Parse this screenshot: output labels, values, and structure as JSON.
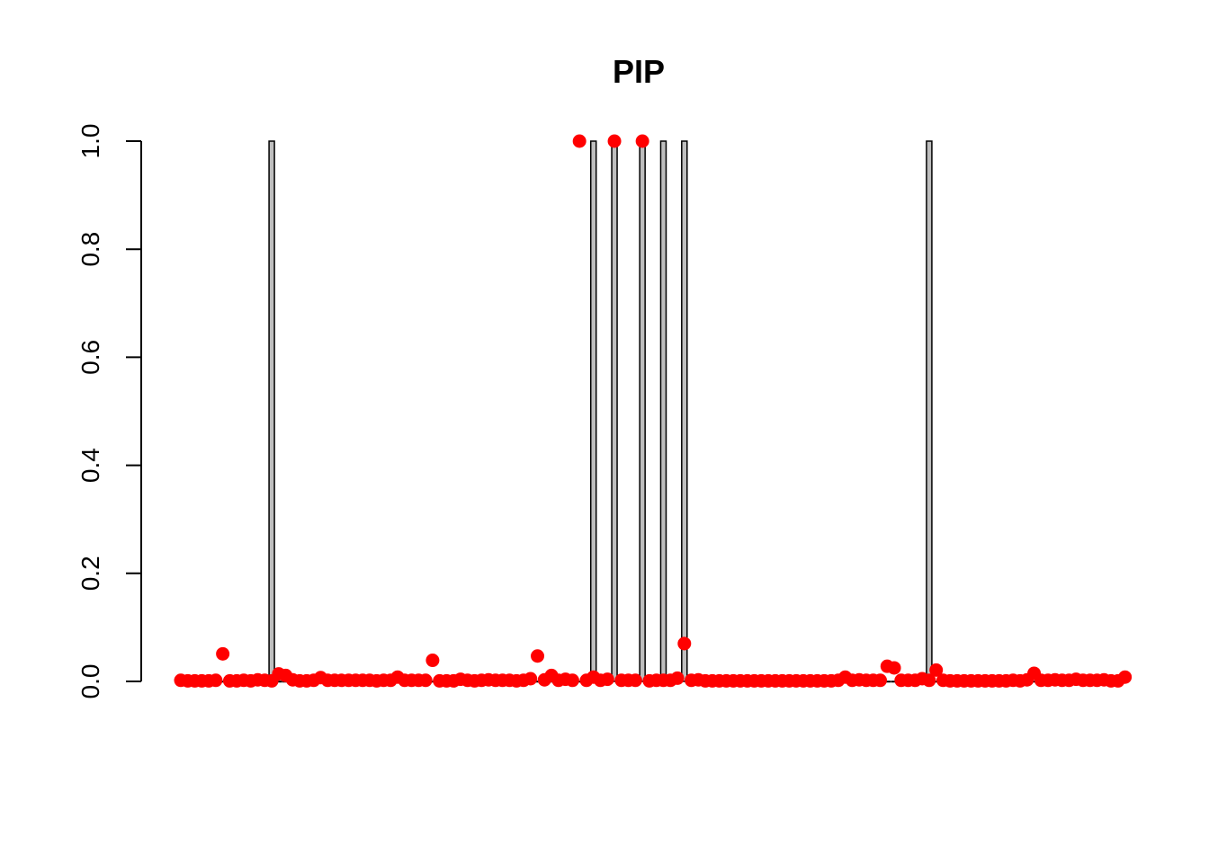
{
  "chart_data": {
    "type": "bar",
    "title": "PIP",
    "xlabel": "",
    "ylabel": "",
    "ylim": [
      0,
      1
    ],
    "yticks": [
      "0.0",
      "0.2",
      "0.4",
      "0.6",
      "0.8",
      "1.0"
    ],
    "grid": false,
    "legend": "none",
    "bar_color": "#bebebe",
    "point_color": "#ff0000",
    "n": 132,
    "series": [
      {
        "kind": "bar",
        "values": [
          0,
          0,
          0,
          0,
          0,
          0,
          0,
          0,
          0,
          0,
          0,
          0,
          0,
          1,
          0,
          0,
          0,
          0,
          0,
          0,
          0,
          0,
          0,
          0,
          0,
          0,
          0,
          0,
          0,
          0,
          0,
          0,
          0,
          0,
          0,
          0,
          0,
          0,
          0,
          0,
          0,
          0,
          0,
          0,
          0,
          0,
          0,
          0,
          0,
          0,
          0,
          0,
          0,
          0,
          0,
          0,
          0,
          0,
          0,
          1,
          0,
          0,
          1,
          0,
          0,
          0,
          1,
          0,
          0,
          1,
          0,
          0,
          1,
          0,
          0,
          0,
          0,
          0,
          0,
          0,
          0,
          0,
          0,
          0,
          0,
          0,
          0,
          0,
          0,
          0,
          0,
          0,
          0,
          0,
          0,
          0,
          0,
          0,
          0,
          0,
          0,
          0,
          0,
          0,
          0,
          0,
          0,
          1,
          0,
          0,
          0,
          0,
          0,
          0,
          0,
          0,
          0,
          0,
          0,
          0,
          0,
          0,
          0,
          0,
          0,
          0,
          0,
          0,
          0,
          0,
          0,
          0
        ]
      },
      {
        "kind": "points",
        "values": [
          0.002,
          0.001,
          0.001,
          0.001,
          0.001,
          0.002,
          0.051,
          0.001,
          0.001,
          0.002,
          0.001,
          0.003,
          0.002,
          0.001,
          0.014,
          0.011,
          0.003,
          0.001,
          0.001,
          0.002,
          0.007,
          0.002,
          0.002,
          0.002,
          0.002,
          0.002,
          0.002,
          0.002,
          0.001,
          0.002,
          0.002,
          0.008,
          0.002,
          0.002,
          0.002,
          0.002,
          0.039,
          0.001,
          0.001,
          0.001,
          0.004,
          0.002,
          0.001,
          0.002,
          0.003,
          0.002,
          0.002,
          0.002,
          0.001,
          0.002,
          0.005,
          0.047,
          0.003,
          0.011,
          0.002,
          0.004,
          0.002,
          1.0,
          0.002,
          0.008,
          0.002,
          0.004,
          1.0,
          0.002,
          0.002,
          0.002,
          1.0,
          0.001,
          0.002,
          0.002,
          0.002,
          0.006,
          0.07,
          0.002,
          0.003,
          0.001,
          0.001,
          0.001,
          0.001,
          0.001,
          0.001,
          0.001,
          0.001,
          0.001,
          0.001,
          0.001,
          0.001,
          0.001,
          0.001,
          0.001,
          0.001,
          0.001,
          0.001,
          0.001,
          0.002,
          0.008,
          0.002,
          0.003,
          0.002,
          0.002,
          0.002,
          0.028,
          0.025,
          0.002,
          0.002,
          0.002,
          0.005,
          0.002,
          0.021,
          0.002,
          0.001,
          0.001,
          0.001,
          0.001,
          0.001,
          0.001,
          0.001,
          0.001,
          0.001,
          0.002,
          0.001,
          0.003,
          0.015,
          0.002,
          0.002,
          0.003,
          0.002,
          0.002,
          0.004,
          0.002,
          0.002,
          0.002,
          0.003,
          0.001,
          0.001,
          0.008
        ]
      }
    ]
  }
}
